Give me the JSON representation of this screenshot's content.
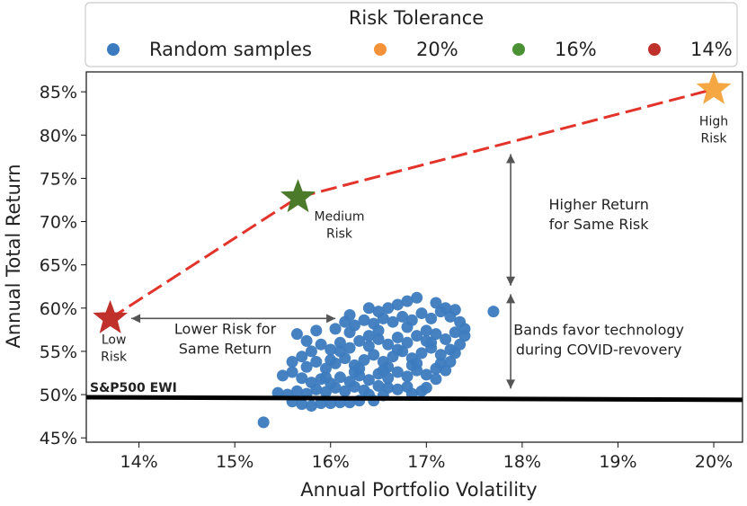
{
  "chart_data": {
    "type": "scatter",
    "xlabel": "Annual Portfolio Volatility",
    "ylabel": "Annual Total Return",
    "xlim": [
      13.45,
      20.3
    ],
    "ylim": [
      44.5,
      87.3
    ],
    "xticks": [
      "14%",
      "15%",
      "16%",
      "17%",
      "18%",
      "19%",
      "20%"
    ],
    "xtick_values": [
      14,
      15,
      16,
      17,
      18,
      19,
      20
    ],
    "yticks": [
      "45%",
      "50%",
      "55%",
      "60%",
      "65%",
      "70%",
      "75%",
      "80%",
      "85%"
    ],
    "ytick_values": [
      45,
      50,
      55,
      60,
      65,
      70,
      75,
      80,
      85
    ],
    "legend": {
      "title": "Risk Tolerance",
      "entries": [
        {
          "label": "Random samples",
          "color": "#3c7bbf"
        },
        {
          "label": "20%",
          "color": "#f4923a"
        },
        {
          "label": "16%",
          "color": "#4b9135"
        },
        {
          "label": "14%",
          "color": "#c0312b"
        }
      ]
    },
    "scatter_color": "#3c7bbf",
    "frontier_color": "#e2342a",
    "frontier": [
      [
        13.7,
        58.8
      ],
      [
        15.66,
        72.8
      ],
      [
        20.0,
        85.3
      ]
    ],
    "stars": [
      {
        "name": "low-risk",
        "x": 13.7,
        "y": 58.8,
        "color": "#c0312b",
        "label_lines": [
          "Low",
          "Risk"
        ]
      },
      {
        "name": "medium-risk",
        "x": 15.66,
        "y": 72.8,
        "color": "#4b7a2b",
        "label_lines": [
          "Medium",
          "Risk"
        ]
      },
      {
        "name": "high-risk",
        "x": 20.0,
        "y": 85.3,
        "color": "#f4a742",
        "label_lines": [
          "High",
          "Risk"
        ]
      }
    ],
    "benchmark": {
      "label": "S&P500 EWI",
      "y_start": 49.7,
      "y_end": 49.4
    },
    "annotations": [
      {
        "name": "lower-risk",
        "lines": [
          "Lower Risk for",
          "Same Return"
        ]
      },
      {
        "name": "higher-return",
        "lines": [
          "Higher Return",
          "for Same Risk"
        ]
      },
      {
        "name": "bands-favor",
        "lines": [
          "Bands favor technology",
          "during COVID-revovery"
        ]
      }
    ],
    "arrows": {
      "horizontal": {
        "x1": 13.92,
        "x2": 16.05,
        "y": 58.8
      },
      "vertical_upper": {
        "x": 17.88,
        "y1": 62.6,
        "y2": 77.8
      },
      "vertical_lower": {
        "x": 17.88,
        "y1": 50.7,
        "y2": 61.6
      }
    },
    "series": [
      {
        "name": "Random samples",
        "points": [
          [
            15.3,
            46.8
          ],
          [
            15.7,
            48.9
          ],
          [
            15.8,
            48.7
          ],
          [
            15.9,
            49.0
          ],
          [
            16.0,
            49.0
          ],
          [
            16.1,
            49.1
          ],
          [
            16.2,
            49.1
          ],
          [
            16.3,
            49.3
          ],
          [
            16.45,
            49.3
          ],
          [
            15.6,
            49.2
          ],
          [
            15.55,
            50.0
          ],
          [
            15.65,
            50.4
          ],
          [
            15.75,
            50.1
          ],
          [
            15.85,
            50.6
          ],
          [
            15.95,
            50.3
          ],
          [
            16.05,
            50.8
          ],
          [
            16.15,
            50.4
          ],
          [
            16.25,
            50.9
          ],
          [
            16.35,
            50.5
          ],
          [
            16.5,
            51.0
          ],
          [
            16.6,
            50.8
          ],
          [
            16.7,
            50.6
          ],
          [
            16.8,
            50.9
          ],
          [
            16.95,
            50.4
          ],
          [
            16.55,
            49.9
          ],
          [
            16.4,
            50.0
          ],
          [
            15.45,
            50.2
          ],
          [
            16.85,
            50.1
          ],
          [
            17.0,
            50.8
          ],
          [
            15.8,
            51.4
          ],
          [
            15.9,
            51.8
          ],
          [
            16.0,
            51.3
          ],
          [
            16.1,
            52.0
          ],
          [
            16.2,
            51.5
          ],
          [
            16.3,
            52.2
          ],
          [
            16.4,
            51.7
          ],
          [
            16.5,
            52.4
          ],
          [
            16.6,
            51.9
          ],
          [
            16.7,
            52.6
          ],
          [
            16.8,
            52.1
          ],
          [
            16.9,
            52.8
          ],
          [
            17.0,
            52.3
          ],
          [
            17.1,
            53.0
          ],
          [
            15.7,
            51.9
          ],
          [
            15.6,
            52.6
          ],
          [
            15.75,
            53.2
          ],
          [
            15.85,
            53.8
          ],
          [
            15.95,
            53.0
          ],
          [
            16.05,
            53.6
          ],
          [
            16.15,
            54.2
          ],
          [
            16.25,
            53.4
          ],
          [
            16.35,
            54.0
          ],
          [
            16.45,
            54.6
          ],
          [
            16.55,
            53.8
          ],
          [
            16.65,
            54.4
          ],
          [
            16.75,
            55.0
          ],
          [
            16.85,
            54.2
          ],
          [
            16.95,
            54.8
          ],
          [
            17.05,
            55.4
          ],
          [
            17.15,
            54.6
          ],
          [
            17.25,
            55.2
          ],
          [
            15.7,
            54.4
          ],
          [
            15.8,
            55.0
          ],
          [
            15.9,
            55.8
          ],
          [
            16.0,
            55.2
          ],
          [
            16.1,
            56.0
          ],
          [
            16.2,
            55.4
          ],
          [
            16.3,
            56.2
          ],
          [
            16.4,
            55.6
          ],
          [
            16.5,
            56.4
          ],
          [
            16.6,
            55.8
          ],
          [
            16.7,
            56.6
          ],
          [
            16.8,
            56.0
          ],
          [
            16.9,
            56.8
          ],
          [
            17.0,
            56.2
          ],
          [
            17.1,
            57.0
          ],
          [
            17.2,
            56.4
          ],
          [
            17.3,
            57.2
          ],
          [
            15.65,
            57.0
          ],
          [
            15.85,
            57.4
          ],
          [
            16.05,
            57.6
          ],
          [
            16.25,
            58.0
          ],
          [
            16.45,
            58.2
          ],
          [
            16.55,
            58.8
          ],
          [
            16.65,
            58.4
          ],
          [
            16.75,
            59.0
          ],
          [
            16.85,
            58.6
          ],
          [
            16.95,
            59.4
          ],
          [
            17.05,
            58.8
          ],
          [
            17.15,
            59.6
          ],
          [
            17.25,
            59.0
          ],
          [
            16.35,
            58.6
          ],
          [
            16.15,
            58.4
          ],
          [
            16.6,
            60.0
          ],
          [
            16.7,
            60.4
          ],
          [
            16.8,
            60.8
          ],
          [
            16.9,
            61.2
          ],
          [
            17.1,
            60.6
          ],
          [
            17.2,
            60.0
          ],
          [
            16.5,
            59.6
          ],
          [
            16.4,
            60.0
          ],
          [
            16.2,
            59.2
          ],
          [
            17.3,
            59.8
          ],
          [
            17.35,
            58.4
          ],
          [
            17.4,
            57.6
          ],
          [
            17.4,
            56.8
          ],
          [
            17.35,
            55.8
          ],
          [
            17.3,
            54.8
          ],
          [
            17.25,
            53.8
          ],
          [
            17.2,
            52.8
          ],
          [
            17.1,
            51.8
          ],
          [
            17.7,
            59.6
          ],
          [
            16.0,
            54.0
          ],
          [
            16.3,
            53.0
          ],
          [
            16.6,
            53.2
          ],
          [
            16.9,
            53.6
          ],
          [
            16.2,
            57.2
          ],
          [
            16.5,
            57.4
          ],
          [
            16.8,
            57.8
          ],
          [
            17.0,
            57.4
          ],
          [
            15.5,
            52.2
          ],
          [
            15.6,
            53.8
          ],
          [
            15.75,
            56.2
          ],
          [
            16.1,
            55.0
          ],
          [
            16.4,
            56.8
          ],
          [
            16.7,
            55.2
          ],
          [
            17.05,
            56.0
          ],
          [
            15.95,
            52.0
          ],
          [
            16.25,
            52.6
          ],
          [
            16.55,
            52.8
          ],
          [
            16.85,
            53.4
          ],
          [
            17.15,
            53.6
          ]
        ]
      }
    ]
  }
}
